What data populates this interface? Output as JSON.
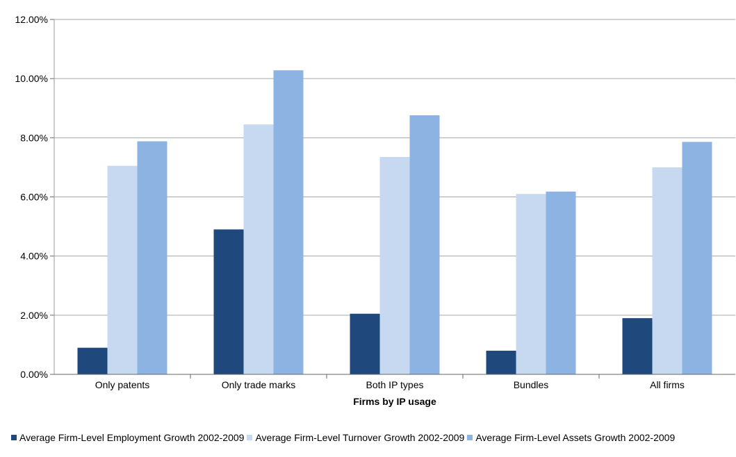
{
  "chart_data": {
    "type": "bar",
    "title": "",
    "xlabel": "Firms by IP usage",
    "ylabel": "",
    "ylim": [
      0,
      12
    ],
    "yticks": [
      "0.00%",
      "2.00%",
      "4.00%",
      "6.00%",
      "8.00%",
      "10.00%",
      "12.00%"
    ],
    "categories": [
      "Only patents",
      "Only trade marks",
      "Both IP types",
      "Bundles",
      "All firms"
    ],
    "series": [
      {
        "name": "Average Firm-Level Employment Growth 2002-2009",
        "color": "#1f497d",
        "values": [
          0.9,
          4.9,
          2.05,
          0.8,
          1.9
        ]
      },
      {
        "name": "Average Firm-Level Turnover Growth 2002-2009",
        "color": "#c6d9f1",
        "values": [
          7.05,
          8.45,
          7.35,
          6.1,
          7.0
        ]
      },
      {
        "name": "Average Firm-Level Assets Growth 2002-2009",
        "color": "#8db3e2",
        "values": [
          7.88,
          10.28,
          8.76,
          6.18,
          7.86
        ]
      }
    ],
    "grid": true,
    "legend": "bottom"
  }
}
